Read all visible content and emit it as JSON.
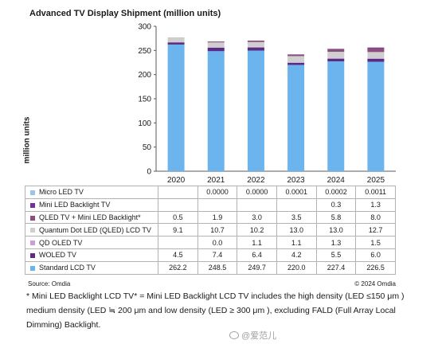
{
  "chart_data": {
    "type": "stacked bar",
    "title": "Advanced TV Display Shipment (million units)",
    "ylabel": "million units",
    "xlabel": "",
    "ylim": [
      0,
      300
    ],
    "yticks": [
      "0",
      "50",
      "100",
      "150",
      "200",
      "250",
      "300"
    ],
    "grid": false,
    "legend": "data table below chart",
    "categories": [
      "2020",
      "2021",
      "2022",
      "2023",
      "2024",
      "2025"
    ],
    "series": [
      {
        "name": "Micro LED TV",
        "color": "#9dc3e6",
        "labels": [
          "",
          "0.0000",
          "0.0000",
          "0.0001",
          "0.0002",
          "0.0011"
        ],
        "values": [
          0,
          0,
          0,
          0.0001,
          0.0002,
          0.0011
        ]
      },
      {
        "name": "Mini LED Backlight TV",
        "color": "#7030a0",
        "labels": [
          "",
          "",
          "",
          "",
          "0.3",
          "1.3"
        ],
        "values": [
          0,
          0,
          0,
          0,
          0.3,
          1.3
        ]
      },
      {
        "name": "QLED TV + Mini LED Backlight*",
        "color": "#8a4f7d",
        "labels": [
          "0.5",
          "1.9",
          "3.0",
          "3.5",
          "5.8",
          "8.0"
        ],
        "values": [
          0.5,
          1.9,
          3.0,
          3.5,
          5.8,
          8.0
        ]
      },
      {
        "name": "Quantum Dot LED (QLED) LCD TV",
        "color": "#d0cece",
        "labels": [
          "9.1",
          "10.7",
          "10.2",
          "13.0",
          "13.0",
          "12.7"
        ],
        "values": [
          9.1,
          10.7,
          10.2,
          13.0,
          13.0,
          12.7
        ]
      },
      {
        "name": "QD OLED TV",
        "color": "#c9a0dc",
        "labels": [
          "",
          "0.0",
          "1.1",
          "1.1",
          "1.3",
          "1.5"
        ],
        "values": [
          0,
          0.0,
          1.1,
          1.1,
          1.3,
          1.5
        ]
      },
      {
        "name": "WOLED TV",
        "color": "#5b2c83",
        "labels": [
          "4.5",
          "7.4",
          "6.4",
          "4.2",
          "5.5",
          "6.0"
        ],
        "values": [
          4.5,
          7.4,
          6.4,
          4.2,
          5.5,
          6.0
        ]
      },
      {
        "name": "Standard LCD TV",
        "color": "#6cb4ee",
        "labels": [
          "262.2",
          "248.5",
          "249.7",
          "220.0",
          "227.4",
          "226.5"
        ],
        "values": [
          262.2,
          248.5,
          249.7,
          220.0,
          227.4,
          226.5
        ]
      }
    ]
  },
  "source": "Source: Omdia",
  "copyright": "© 2024 Omdia",
  "footnote": "* Mini LED Backlight LCD TV* = Mini LED Backlight LCD TV includes the high density (LED ≤150 μm ) medium density (LED ≒ 200 μm and low density (LED ≥ 300 μm ), excluding FALD (Full Array Local Dimming) Backlight.",
  "watermark": "@爱范儿"
}
